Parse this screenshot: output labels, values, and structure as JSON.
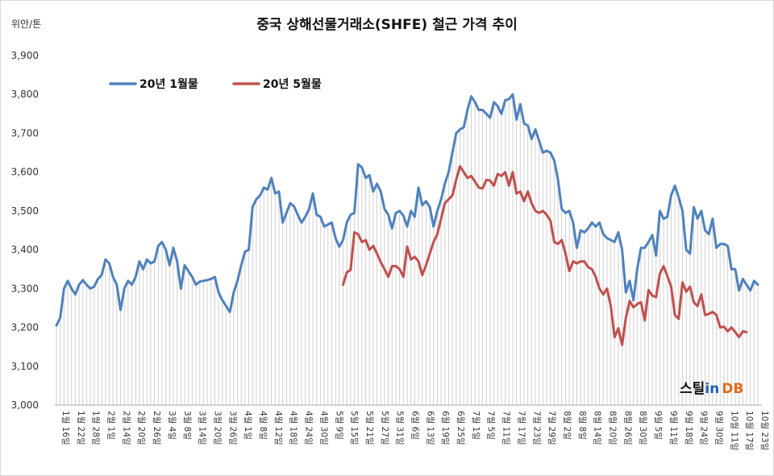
{
  "chart_data": {
    "type": "line",
    "title": "중국 상해선물거래소(SHFE) 철근 가격 추이",
    "ylabel": "위안/톤",
    "ylim": [
      3000,
      3900
    ],
    "yticks": [
      "3,000",
      "3,100",
      "3,200",
      "3,300",
      "3,400",
      "3,500",
      "3,600",
      "3,700",
      "3,800",
      "3,900"
    ],
    "xtick_labels": [
      "1월 16일",
      "1월 22일",
      "1월 28일",
      "2월 1일",
      "2월 14일",
      "2월 20일",
      "2월 26일",
      "3월 4일",
      "3월 8일",
      "3월 14일",
      "3월 20일",
      "3월 26일",
      "4월 1일",
      "4월 8일",
      "4월 12일",
      "4월 18일",
      "4월 24일",
      "4월 30일",
      "5월 9일",
      "5월 15일",
      "5월 21일",
      "5월 27일",
      "5월 31일",
      "6월 6일",
      "6월 13일",
      "6월 19일",
      "6월 25일",
      "7월 1일",
      "7월 5일",
      "7월 11일",
      "7월 17일",
      "7월 23일",
      "7월 29일",
      "8월 2일",
      "8월 8일",
      "8월 14일",
      "8월 20일",
      "8월 26일",
      "8월 30일",
      "9월 5일",
      "9월 11일",
      "9월 18일",
      "9월 24일",
      "9월 30일",
      "10월 11일",
      "10월 17일",
      "10월 23일"
    ],
    "series": [
      {
        "name": "20년 1월물",
        "color": "#4f81bd",
        "values": [
          3205,
          3225,
          3300,
          3320,
          3300,
          3285,
          3310,
          3322,
          3310,
          3300,
          3305,
          3325,
          3335,
          3375,
          3365,
          3330,
          3310,
          3245,
          3300,
          3320,
          3310,
          3330,
          3370,
          3350,
          3375,
          3365,
          3370,
          3410,
          3420,
          3400,
          3360,
          3405,
          3370,
          3300,
          3360,
          3345,
          3330,
          3310,
          3318,
          3320,
          3322,
          3325,
          3330,
          3290,
          3270,
          3255,
          3240,
          3290,
          3320,
          3360,
          3395,
          3400,
          3510,
          3530,
          3540,
          3560,
          3555,
          3585,
          3545,
          3550,
          3470,
          3495,
          3520,
          3512,
          3490,
          3470,
          3485,
          3505,
          3545,
          3490,
          3485,
          3460,
          3465,
          3470,
          3430,
          3408,
          3425,
          3470,
          3490,
          3495,
          3620,
          3612,
          3585,
          3592,
          3550,
          3570,
          3550,
          3505,
          3490,
          3455,
          3495,
          3500,
          3488,
          3460,
          3500,
          3485,
          3560,
          3515,
          3525,
          3510,
          3460,
          3500,
          3530,
          3570,
          3600,
          3650,
          3700,
          3710,
          3715,
          3760,
          3795,
          3780,
          3760,
          3760,
          3750,
          3740,
          3780,
          3770,
          3750,
          3785,
          3788,
          3800,
          3735,
          3775,
          3725,
          3720,
          3685,
          3710,
          3680,
          3650,
          3655,
          3650,
          3630,
          3580,
          3505,
          3495,
          3500,
          3470,
          3405,
          3450,
          3445,
          3455,
          3470,
          3460,
          3470,
          3440,
          3430,
          3425,
          3420,
          3445,
          3400,
          3290,
          3320,
          3270,
          3350,
          3405,
          3405,
          3420,
          3438,
          3385,
          3500,
          3480,
          3485,
          3540,
          3565,
          3535,
          3500,
          3400,
          3390,
          3510,
          3480,
          3500,
          3450,
          3440,
          3480,
          3405,
          3415,
          3415,
          3410,
          3350,
          3350,
          3295,
          3325,
          3310,
          3295,
          3320,
          3310
        ]
      },
      {
        "name": "20년 5월물",
        "color": "#c0504d",
        "values": [
          null,
          null,
          null,
          null,
          null,
          null,
          null,
          null,
          null,
          null,
          null,
          null,
          null,
          null,
          null,
          null,
          null,
          null,
          null,
          null,
          null,
          null,
          null,
          null,
          null,
          null,
          null,
          null,
          null,
          null,
          null,
          null,
          null,
          null,
          null,
          null,
          null,
          null,
          null,
          null,
          null,
          null,
          null,
          null,
          null,
          null,
          null,
          null,
          null,
          null,
          null,
          null,
          null,
          null,
          null,
          null,
          null,
          null,
          null,
          null,
          null,
          null,
          null,
          null,
          null,
          null,
          null,
          null,
          null,
          null,
          null,
          null,
          null,
          null,
          null,
          null,
          3310,
          3342,
          3348,
          3445,
          3440,
          3420,
          3425,
          3400,
          3410,
          3390,
          3368,
          3350,
          3330,
          3358,
          3358,
          3350,
          3330,
          3408,
          3375,
          3382,
          3370,
          3335,
          3360,
          3390,
          3420,
          3440,
          3480,
          3520,
          3530,
          3540,
          3580,
          3615,
          3600,
          3585,
          3590,
          3575,
          3560,
          3558,
          3580,
          3578,
          3565,
          3595,
          3590,
          3600,
          3565,
          3600,
          3545,
          3550,
          3525,
          3550,
          3520,
          3500,
          3495,
          3500,
          3490,
          3475,
          3420,
          3415,
          3425,
          3390,
          3345,
          3370,
          3365,
          3370,
          3370,
          3355,
          3350,
          3330,
          3300,
          3285,
          3300,
          3255,
          3175,
          3198,
          3155,
          3225,
          3268,
          3252,
          3260,
          3265,
          3218,
          3296,
          3282,
          3278,
          3338,
          3358,
          3332,
          3305,
          3232,
          3222,
          3316,
          3292,
          3305,
          3265,
          3255,
          3285,
          3232,
          3235,
          3240,
          3232,
          3200,
          3202,
          3190,
          3200,
          3188,
          3175,
          3190,
          3188
        ]
      }
    ],
    "grid": false,
    "legend": "top-left"
  },
  "logo": {
    "text_prefix": "스틸",
    "text_mid": "in",
    "text_suffix": "DB"
  }
}
